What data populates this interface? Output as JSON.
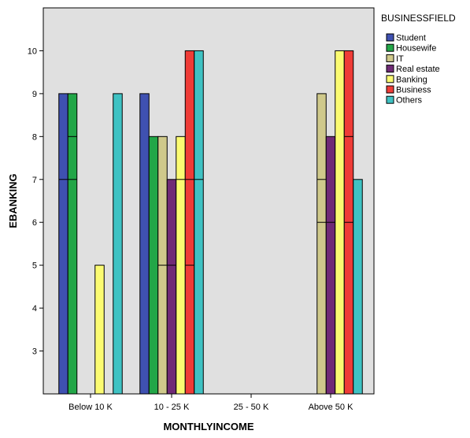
{
  "chart_data": {
    "type": "bar",
    "title": "",
    "xlabel": "MONTHLYINCOME",
    "ylabel": "EBANKING",
    "ylim": [
      2,
      11
    ],
    "yticks": [
      3,
      4,
      5,
      6,
      7,
      8,
      9,
      10
    ],
    "grid": false,
    "legend_position": "right",
    "legend_title": "BUSINESSFIELD",
    "plot_background": "#e0e0e0",
    "categories": [
      "Below 10 K",
      "10 - 25 K",
      "25 - 50 K",
      "Above 50 K"
    ],
    "series": [
      {
        "name": "Student",
        "color": "#3f51b1",
        "values": [
          9,
          9,
          null,
          null
        ],
        "segments": [
          [
            7
          ],
          [],
          [],
          []
        ]
      },
      {
        "name": "Housewife",
        "color": "#22a647",
        "values": [
          9,
          8,
          null,
          null
        ],
        "segments": [
          [
            7,
            8
          ],
          [],
          [],
          []
        ]
      },
      {
        "name": "IT",
        "color": "#cfc98b",
        "values": [
          null,
          8,
          null,
          9
        ],
        "segments": [
          [],
          [
            5
          ],
          [],
          [
            6,
            7
          ]
        ]
      },
      {
        "name": "Real estate",
        "color": "#702b76",
        "values": [
          null,
          7,
          null,
          8
        ],
        "segments": [
          [],
          [
            5
          ],
          [],
          [
            6
          ]
        ]
      },
      {
        "name": "Banking",
        "color": "#fbfb72",
        "values": [
          5,
          8,
          null,
          10
        ],
        "segments": [
          [],
          [
            7
          ],
          [],
          []
        ]
      },
      {
        "name": "Business",
        "color": "#ef3c37",
        "values": [
          null,
          10,
          null,
          10
        ],
        "segments": [
          [],
          [
            5,
            7
          ],
          [],
          [
            6,
            8
          ]
        ]
      },
      {
        "name": "Others",
        "color": "#3fc2c3",
        "values": [
          9,
          10,
          null,
          7
        ],
        "segments": [
          [],
          [
            7
          ],
          [],
          []
        ]
      }
    ]
  }
}
